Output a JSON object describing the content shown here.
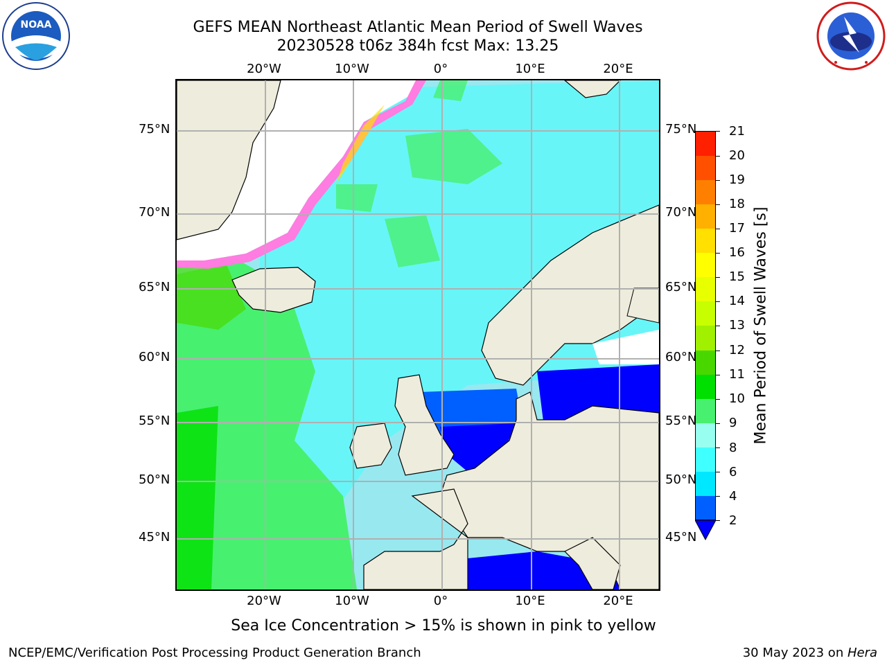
{
  "title": {
    "line1": "GEFS MEAN Northeast Atlantic Mean Period of Swell Waves",
    "line2": "20230528 t06z 384h fcst   Max: 13.25"
  },
  "logos": {
    "noaa": {
      "text": "NOAA",
      "ring": "NATIONAL OCEANIC AND ATMOSPHERIC ADMINISTRATION · U.S. DEPARTMENT OF COMMERCE"
    },
    "nws": {
      "ring": "NATIONAL WEATHER SERVICE"
    }
  },
  "map": {
    "lon_labels": [
      "20°W",
      "10°W",
      "0°",
      "10°E",
      "20°E"
    ],
    "lat_labels": [
      "75°N",
      "70°N",
      "65°N",
      "60°N",
      "55°N",
      "50°N",
      "45°N"
    ],
    "colors": {
      "land": "#eeecdc",
      "ocean_default": "#98e8f0",
      "grid": "#b0b0b0"
    }
  },
  "colorbar": {
    "label": "Mean Period of Swell Waves [s]",
    "ticks": [
      "2",
      "4",
      "6",
      "8",
      "9",
      "10",
      "11",
      "12",
      "13",
      "14",
      "15",
      "16",
      "17",
      "18",
      "19",
      "20",
      "21"
    ],
    "colors": [
      "#0060ff",
      "#00e8ff",
      "#40ffff",
      "#98fff0",
      "#48f070",
      "#00e000",
      "#48d800",
      "#a0f000",
      "#c8ff00",
      "#e8ff00",
      "#ffff00",
      "#ffe000",
      "#ffb000",
      "#ff8000",
      "#ff5000",
      "#ff2000"
    ],
    "extend_color": "#0000ff"
  },
  "ice_note": "Sea Ice Concentration > 15% is shown in pink to yellow",
  "footer": {
    "left": "NCEP/EMC/Verification Post Processing Product Generation Branch",
    "right_date": "30 May 2023 on ",
    "right_host": "Hera"
  }
}
